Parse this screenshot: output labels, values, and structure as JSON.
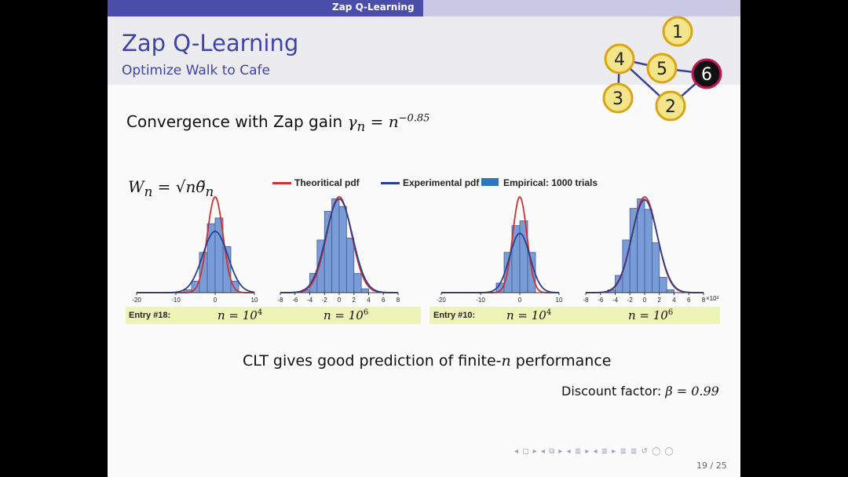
{
  "header": {
    "section_title": "Zap Q-Learning"
  },
  "slide": {
    "title": "Zap Q-Learning",
    "subtitle": "Optimize Walk to Cafe",
    "convergence_prefix": "Convergence with Zap gain ",
    "convergence_math": "γ",
    "convergence_sub": "n",
    "convergence_eq": " = n",
    "convergence_exp": "−0.85",
    "wn_label": "W",
    "wn_sub": "n",
    "wn_eq": " = √nθ̃",
    "wn_sub2": "n",
    "clt_text": "CLT gives good prediction of finite-",
    "clt_n": "n",
    "clt_suffix": " performance",
    "discount_text": "Discount factor: ",
    "discount_math": "β = 0.99",
    "page": "19 / 25",
    "nav_glyphs": "◂ ◻ ▸  ◂ ⧉ ▸  ◂ ≣ ▸  ◂ ≣ ▸  ≣ ≣  ↺ ◯ ◯"
  },
  "legend": {
    "theoretical": "Theoritical pdf",
    "experimental": "Experimental pdf",
    "empirical": "Empirical: 1000 trials",
    "theoretical_color": "#d0312d",
    "experimental_color": "#2c3f8f",
    "empirical_color": "#2c77bd"
  },
  "entries": [
    {
      "label": "Entry #18:",
      "n1": "n = 10",
      "n1_exp": "4",
      "n2": "n = 10",
      "n2_exp": "6"
    },
    {
      "label": "Entry #10:",
      "n1": "n = 10",
      "n1_exp": "4",
      "n2": "n = 10",
      "n2_exp": "6"
    }
  ],
  "graph": {
    "nodes": [
      {
        "id": "1",
        "label": "1"
      },
      {
        "id": "2",
        "label": "2"
      },
      {
        "id": "3",
        "label": "3"
      },
      {
        "id": "4",
        "label": "4"
      },
      {
        "id": "5",
        "label": "5"
      },
      {
        "id": "6",
        "label": "6"
      }
    ],
    "edges": [
      [
        "4",
        "5"
      ],
      [
        "4",
        "3"
      ],
      [
        "4",
        "2"
      ],
      [
        "5",
        "6"
      ],
      [
        "2",
        "6"
      ]
    ],
    "node_fill": "#f4e48a",
    "node_stroke": "#d9a514",
    "goal_fill": "#111111",
    "goal_stroke": "#c2185b"
  },
  "chart_data": [
    {
      "type": "bar",
      "series_names": [
        "Theoritical pdf",
        "Experimental pdf",
        "Empirical: 1000 trials"
      ],
      "xlim": [
        -20,
        10
      ],
      "xticks": [
        -20,
        -10,
        0,
        10
      ],
      "xtick_labels": [
        "-20",
        "-10",
        "0",
        "10"
      ],
      "bin_edges": [
        -8,
        -6,
        -4,
        -2,
        0,
        2,
        4,
        6
      ],
      "bin_heights": [
        0.03,
        0.12,
        0.42,
        0.72,
        0.78,
        0.48,
        0.12
      ],
      "theory_sigma": 2.0,
      "theory_peak": 1.0,
      "exp_mu": 0.0,
      "exp_sigma": 3.2,
      "exp_peak": 0.64,
      "xunit": ""
    },
    {
      "type": "bar",
      "series_names": [
        "Theoritical pdf",
        "Experimental pdf",
        "Empirical: 1000 trials"
      ],
      "xlim": [
        -8,
        8
      ],
      "xticks": [
        -8,
        -6,
        -4,
        -2,
        0,
        2,
        4,
        6,
        8
      ],
      "xtick_labels": [
        "-8",
        "-6",
        "-4",
        "-2",
        "0",
        "2",
        "4",
        "6",
        "8"
      ],
      "bin_edges": [
        -5,
        -4,
        -3,
        -2,
        -1,
        0,
        1,
        2,
        3,
        4
      ],
      "bin_heights": [
        0.03,
        0.2,
        0.55,
        0.85,
        0.98,
        0.9,
        0.57,
        0.2,
        0.04
      ],
      "theory_sigma": 1.7,
      "theory_peak": 1.0,
      "exp_mu": 0.0,
      "exp_sigma": 1.8,
      "exp_peak": 0.98,
      "xunit": ""
    },
    {
      "type": "bar",
      "series_names": [
        "Theoritical pdf",
        "Experimental pdf",
        "Empirical: 1000 trials"
      ],
      "xlim": [
        -20,
        10
      ],
      "xticks": [
        -20,
        -10,
        0,
        10
      ],
      "xtick_labels": [
        "-20",
        "-10",
        "0",
        "10"
      ],
      "bin_edges": [
        -6,
        -4,
        -2,
        0,
        2,
        4
      ],
      "bin_heights": [
        0.1,
        0.42,
        0.7,
        0.75,
        0.42
      ],
      "theory_sigma": 1.8,
      "theory_peak": 1.0,
      "exp_mu": 0.0,
      "exp_sigma": 2.6,
      "exp_peak": 0.62,
      "xunit": ""
    },
    {
      "type": "bar",
      "series_names": [
        "Theoritical pdf",
        "Experimental pdf",
        "Empirical: 1000 trials"
      ],
      "xlim": [
        -8,
        8
      ],
      "xticks": [
        -8,
        -6,
        -4,
        -2,
        0,
        2,
        4,
        6,
        8
      ],
      "xtick_labels": [
        "-8",
        "-6",
        "-4",
        "-2",
        "0",
        "2",
        "4",
        "6",
        "8"
      ],
      "xunit": "×10³",
      "bin_edges": [
        -5,
        -4,
        -3,
        -2,
        -1,
        0,
        1,
        2,
        3,
        4
      ],
      "bin_heights": [
        0.03,
        0.18,
        0.55,
        0.88,
        0.98,
        0.87,
        0.52,
        0.16,
        0.03
      ],
      "theory_sigma": 1.7,
      "theory_peak": 1.0,
      "exp_mu": 0.0,
      "exp_sigma": 1.75,
      "exp_peak": 0.97
    }
  ]
}
